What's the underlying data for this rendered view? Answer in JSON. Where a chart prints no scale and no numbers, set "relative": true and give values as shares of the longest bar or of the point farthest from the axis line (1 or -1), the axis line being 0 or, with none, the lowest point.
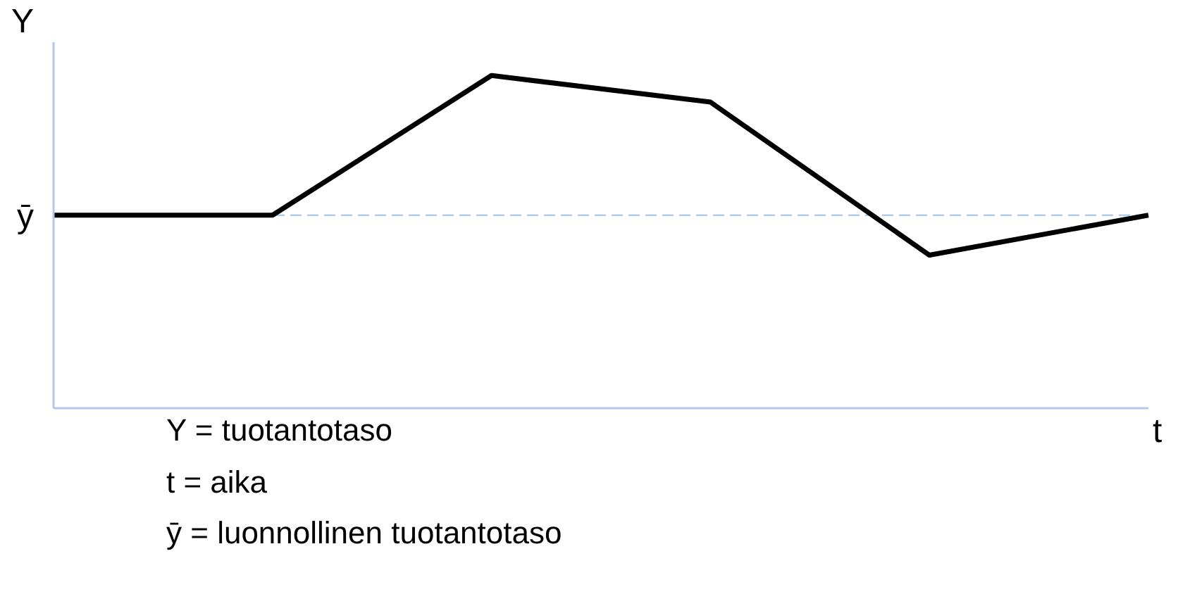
{
  "chart_data": {
    "type": "line",
    "relative": true,
    "ylabel": "Y",
    "xlabel": "t",
    "categories": [
      null,
      null,
      null,
      null,
      null,
      null
    ],
    "series": [
      {
        "color": "#000000",
        "values": [
          0.58,
          0.58,
          1,
          0.92,
          0.46,
          0.58
        ]
      }
    ],
    "ref_lines": [
      {
        "axis": "y",
        "value": 0.58,
        "label": "ȳ",
        "color": "#9dc3e6",
        "line_style": "dashed"
      }
    ],
    "grid": false,
    "legend": false,
    "marker": "none",
    "line_style": "solid",
    "annotations": [
      "Y = tuotantotaso",
      "t = aika",
      "ȳ = luonnollinen tuotantotaso"
    ]
  }
}
